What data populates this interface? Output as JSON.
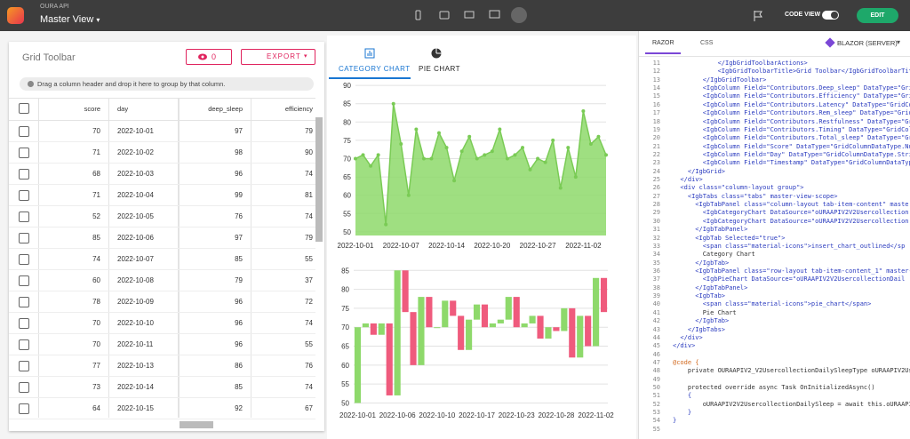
{
  "app": {
    "api": "OURA API",
    "view": "Master View",
    "code_view": "CODE VIEW",
    "edit": "EDIT"
  },
  "grid": {
    "title": "Grid Toolbar",
    "hidden_count": 0,
    "export": "EXPORT",
    "group_hint": "Drag a column header and drop it here to group by that column.",
    "columns": [
      "score",
      "day",
      "deep_sleep",
      "efficiency"
    ],
    "rows": [
      [
        70,
        "2022-10-01",
        97,
        79
      ],
      [
        71,
        "2022-10-02",
        98,
        90
      ],
      [
        68,
        "2022-10-03",
        96,
        74
      ],
      [
        71,
        "2022-10-04",
        99,
        81
      ],
      [
        52,
        "2022-10-05",
        76,
        74
      ],
      [
        85,
        "2022-10-06",
        97,
        79
      ],
      [
        74,
        "2022-10-07",
        85,
        55
      ],
      [
        60,
        "2022-10-08",
        79,
        37
      ],
      [
        78,
        "2022-10-09",
        96,
        72
      ],
      [
        70,
        "2022-10-10",
        96,
        74
      ],
      [
        70,
        "2022-10-11",
        96,
        55
      ],
      [
        77,
        "2022-10-13",
        86,
        76
      ],
      [
        73,
        "2022-10-14",
        85,
        74
      ],
      [
        64,
        "2022-10-15",
        92,
        67
      ]
    ]
  },
  "tabs": [
    "CATEGORY CHART",
    "PIE CHART"
  ],
  "chart_data": [
    {
      "type": "area",
      "color": "#8ed96b",
      "line_color": "#7acb55",
      "grid": true,
      "categories": [
        "2022-10-01",
        null,
        null,
        null,
        null,
        null,
        "2022-10-07",
        null,
        null,
        null,
        null,
        null,
        "2022-10-14",
        null,
        null,
        null,
        null,
        null,
        "2022-10-20",
        null,
        null,
        null,
        null,
        null,
        "2022-10-27",
        null,
        null,
        null,
        null,
        null,
        "2022-11-02",
        null,
        null,
        null
      ],
      "values": [
        70,
        71,
        68,
        71,
        52,
        85,
        74,
        60,
        78,
        70,
        70,
        77,
        73,
        64,
        72,
        76,
        70,
        71,
        72,
        78,
        70,
        71,
        73,
        67,
        70,
        69,
        75,
        62,
        73,
        65,
        83,
        74,
        76,
        71
      ],
      "ylim": [
        49,
        91
      ],
      "yticks": [
        50,
        55,
        60,
        65,
        70,
        75,
        80,
        85,
        90
      ]
    },
    {
      "type": "candlestick",
      "up_color": "#8ed96b",
      "down_color": "#ef5b7d",
      "grid": true,
      "categories": [
        "2022-10-01",
        null,
        null,
        null,
        null,
        "2022-10-06",
        null,
        null,
        null,
        null,
        "2022-10-10",
        null,
        null,
        null,
        null,
        "2022-10-17",
        null,
        null,
        null,
        null,
        "2022-10-23",
        null,
        null,
        null,
        null,
        "2022-10-28",
        null,
        null,
        null,
        null,
        "2022-11-02",
        null
      ],
      "open": [
        50,
        70,
        71,
        68,
        71,
        52,
        85,
        74,
        60,
        78,
        70,
        70,
        77,
        73,
        64,
        72,
        76,
        70,
        71,
        72,
        78,
        70,
        71,
        73,
        67,
        70,
        69,
        75,
        62,
        73,
        65,
        83
      ],
      "close": [
        70,
        71,
        68,
        71,
        52,
        85,
        74,
        60,
        78,
        70,
        70,
        77,
        73,
        64,
        72,
        76,
        70,
        71,
        72,
        78,
        70,
        71,
        73,
        67,
        70,
        69,
        75,
        62,
        73,
        65,
        83,
        74
      ],
      "ylim": [
        48,
        86
      ],
      "yticks": [
        50,
        55,
        60,
        65,
        70,
        75,
        80,
        85
      ]
    }
  ],
  "editor": {
    "tabs": [
      "RAZOR",
      "CSS"
    ],
    "platform": "BLAZOR (SERVER)",
    "lines": [
      {
        "n": 11,
        "code": "            </IgbGridToolbarActions>"
      },
      {
        "n": 12,
        "code": "            <IgbGridToolbarTitle>Grid Toolbar</IgbGridToolbarTitle>"
      },
      {
        "n": 13,
        "code": "        </IgbGridToolbar>"
      },
      {
        "n": 14,
        "code": "        <IgbColumn Field=\"Contributors.Deep_sleep\" DataType=\"GridCo"
      },
      {
        "n": 15,
        "code": "        <IgbColumn Field=\"Contributors.Efficiency\" DataType=\"GridColu"
      },
      {
        "n": 16,
        "code": "        <IgbColumn Field=\"Contributors.Latency\" DataType=\"GridColum"
      },
      {
        "n": 17,
        "code": "        <IgbColumn Field=\"Contributors.Rem_sleep\" DataType=\"GridCo"
      },
      {
        "n": 18,
        "code": "        <IgbColumn Field=\"Contributors.Restfulness\" DataType=\"Grid"
      },
      {
        "n": 19,
        "code": "        <IgbColumn Field=\"Contributors.Timing\" DataType=\"GridColum"
      },
      {
        "n": 20,
        "code": "        <IgbColumn Field=\"Contributors.Total_sleep\" DataType=\"Gri"
      },
      {
        "n": 21,
        "code": "        <IgbColumn Field=\"Score\" DataType=\"GridColumnDataType.Num"
      },
      {
        "n": 22,
        "code": "        <IgbColumn Field=\"Day\" DataType=\"GridColumnDataType.String"
      },
      {
        "n": 23,
        "code": "        <IgbColumn Field=\"Timestamp\" DataType=\"GridColumnDataType."
      },
      {
        "n": 24,
        "code": "    </IgbGrid>"
      },
      {
        "n": 25,
        "code": "  </div>"
      },
      {
        "n": 26,
        "code": "  <div class=\"column-layout group\">"
      },
      {
        "n": 27,
        "code": "    <IgbTabs class=\"tabs\" master-view-scope>"
      },
      {
        "n": 28,
        "code": "      <IgbTabPanel class=\"column-layout tab-item-content\" maste"
      },
      {
        "n": 29,
        "code": "        <IgbCategoryChart DataSource=\"oURAAPIV2V2Usercollection"
      },
      {
        "n": 30,
        "code": "        <IgbCategoryChart DataSource=\"oURAAPIV2V2Usercollection"
      },
      {
        "n": 31,
        "code": "      </IgbTabPanel>"
      },
      {
        "n": 32,
        "code": "      <IgbTab Selected=\"true\">"
      },
      {
        "n": 33,
        "code": "        <span class=\"material-icons\">insert_chart_outlined</sp"
      },
      {
        "n": 34,
        "code": "        Category Chart"
      },
      {
        "n": 35,
        "code": "      </IgbTab>"
      },
      {
        "n": 36,
        "code": "      <IgbTabPanel class=\"row-layout tab-item-content_1\" master-"
      },
      {
        "n": 37,
        "code": "        <IgbPieChart DataSource=\"oURAAPIV2V2UsercollectionDail"
      },
      {
        "n": 38,
        "code": "      </IgbTabPanel>"
      },
      {
        "n": 39,
        "code": "      <IgbTab>"
      },
      {
        "n": 40,
        "code": "        <span class=\"material-icons\">pie_chart</span>"
      },
      {
        "n": 41,
        "code": "        Pie Chart"
      },
      {
        "n": 42,
        "code": "      </IgbTab>"
      },
      {
        "n": 43,
        "code": "    </IgbTabs>"
      },
      {
        "n": 44,
        "code": "  </div>"
      },
      {
        "n": 45,
        "code": "</div>"
      },
      {
        "n": 46
      },
      {
        "n": 47,
        "code": "@code {"
      },
      {
        "n": 48,
        "code": "    private OURAAPIV2_V2UsercollectionDailySleepType oURAAPIV2Userco"
      },
      {
        "n": 49
      },
      {
        "n": 50,
        "code": "    protected override async Task OnInitializedAsync()"
      },
      {
        "n": 51,
        "code": "    {"
      },
      {
        "n": 52,
        "code": "        oURAAPIV2V2UsercollectionDailySleep = await this.oURAAPIV2Serv"
      },
      {
        "n": 53,
        "code": "    }"
      },
      {
        "n": 54,
        "code": "}"
      },
      {
        "n": 55
      }
    ]
  }
}
